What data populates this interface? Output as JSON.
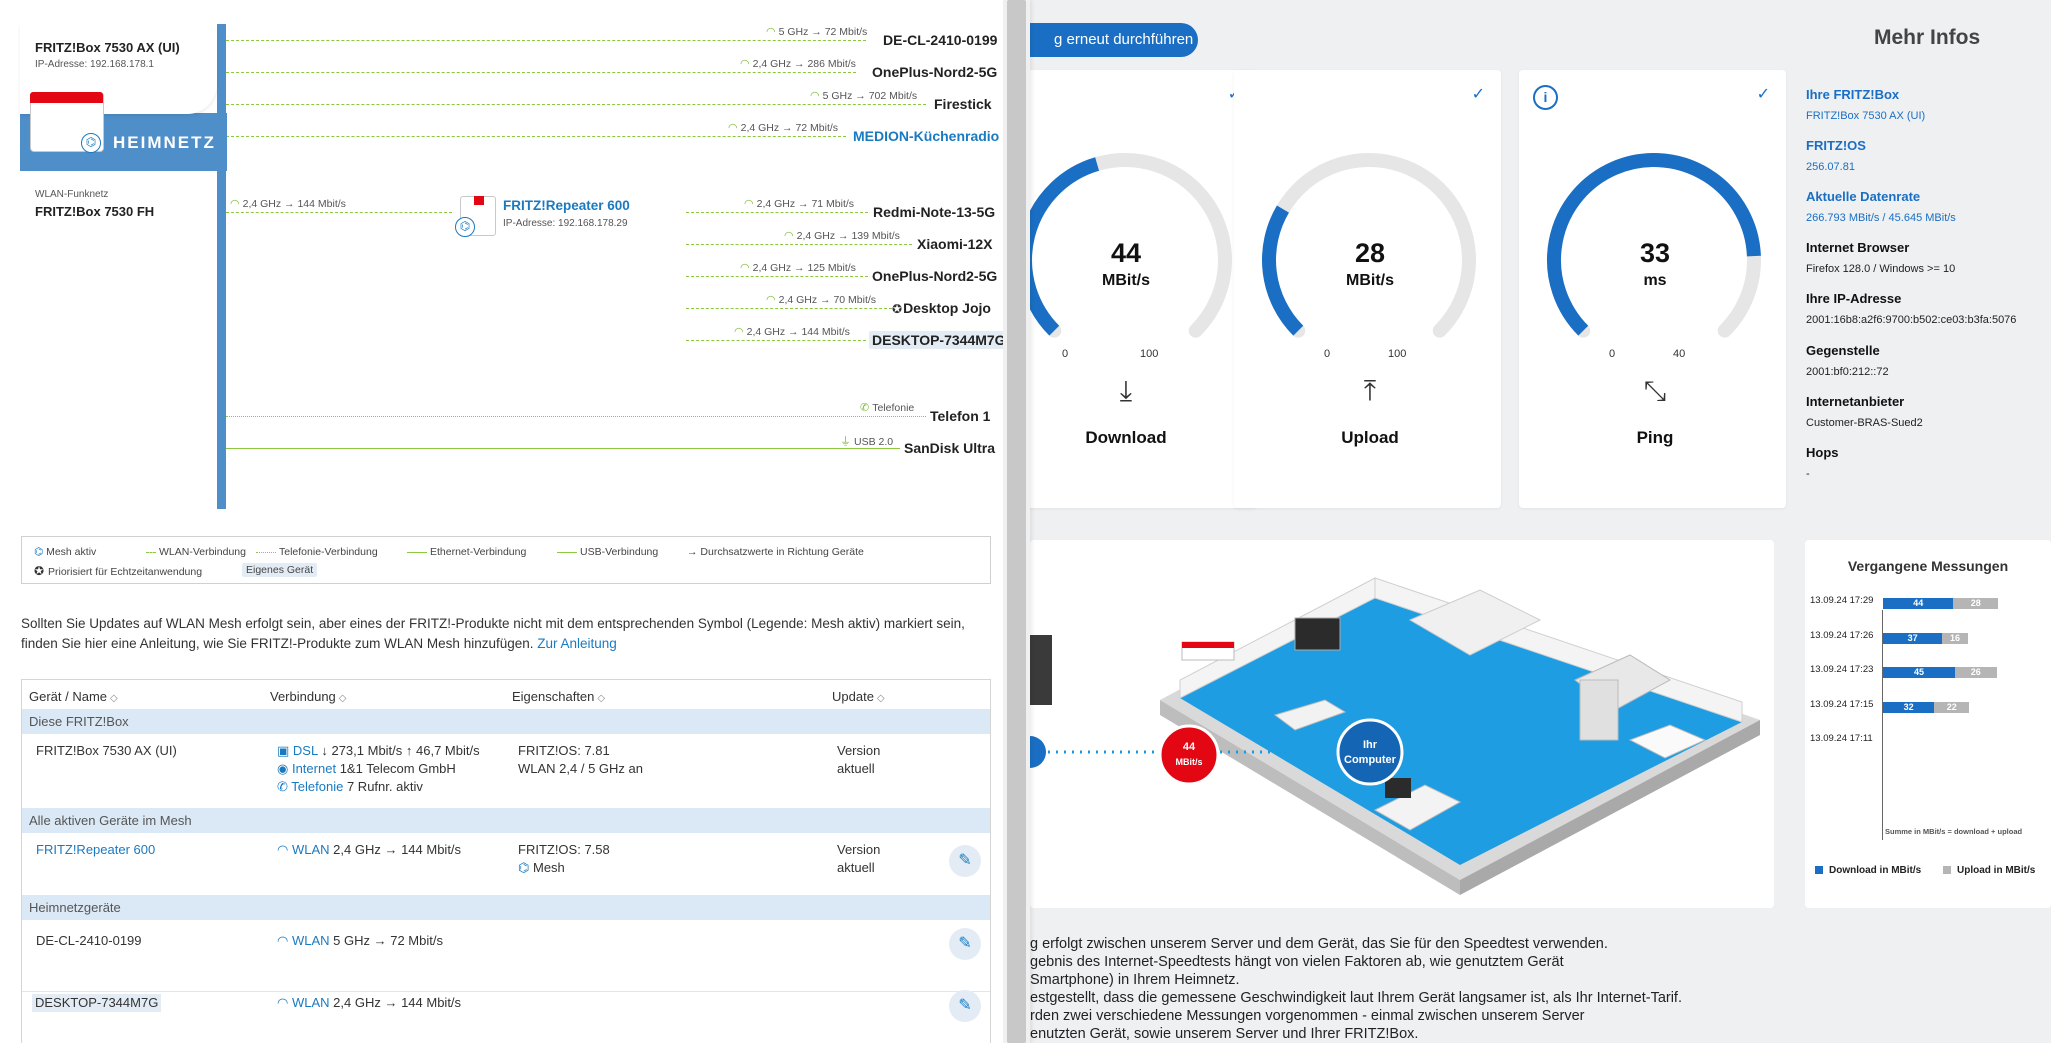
{
  "mesh": {
    "router": {
      "name": "FRITZ!Box 7530 AX (UI)",
      "ip": "IP-Adresse: 192.168.178.1"
    },
    "heimnetz_label": "HEIMNETZ",
    "wlan_funknetz": {
      "label": "WLAN-Funknetz",
      "name": "FRITZ!Box 7530 FH"
    },
    "repeater": {
      "name": "FRITZ!Repeater 600",
      "ip": "IP-Adresse: 192.168.178.29",
      "speed": "2,4 GHz → 144 Mbit/s"
    },
    "router_devices": [
      {
        "name": "DE-CL-2410-0199",
        "speed": "5 GHz → 72 Mbit/s"
      },
      {
        "name": "OnePlus-Nord2-5G",
        "speed": "2,4 GHz → 286 Mbit/s"
      },
      {
        "name": "Firestick",
        "speed": "5 GHz → 702 Mbit/s"
      },
      {
        "name": "MEDION-Küchenradio",
        "speed": "2,4 GHz → 72 Mbit/s"
      }
    ],
    "repeater_devices": [
      {
        "name": "Redmi-Note-13-5G",
        "speed": "2,4 GHz → 71 Mbit/s"
      },
      {
        "name": "Xiaomi-12X",
        "speed": "2,4 GHz → 139 Mbit/s"
      },
      {
        "name": "OnePlus-Nord2-5G",
        "speed": "2,4 GHz → 125 Mbit/s"
      },
      {
        "name": "Desktop Jojo",
        "speed": "2,4 GHz → 70 Mbit/s"
      },
      {
        "name": "DESKTOP-7344M7G",
        "speed": "2,4 GHz → 144 Mbit/s"
      }
    ],
    "telefon": {
      "name": "Telefon 1",
      "label": "Telefonie"
    },
    "usb": {
      "name": "SanDisk Ultra",
      "label": "USB 2.0"
    }
  },
  "legend": {
    "mesh_aktiv": "Mesh aktiv",
    "wlan": "WLAN-Verbindung",
    "telefonie": "Telefonie-Verbindung",
    "ethernet": "Ethernet-Verbindung",
    "usb": "USB-Verbindung",
    "durchsatz": "→ Durchsatzwerte in Richtung Geräte",
    "priorisiert": "Priorisiert für Echtzeitanwendung",
    "eigenes": "Eigenes Gerät"
  },
  "hint": {
    "text": "Sollten Sie Updates auf WLAN Mesh erfolgt sein, aber eines der FRITZ!-Produkte nicht mit dem entsprechenden Symbol (Legende: Mesh aktiv) markiert sein,",
    "text2": "finden Sie hier eine Anleitung, wie Sie FRITZ!-Produkte zum WLAN Mesh hinzufügen.",
    "link": "Zur Anleitung"
  },
  "table": {
    "headers": [
      "Gerät / Name",
      "Verbindung",
      "Eigenschaften",
      "Update"
    ],
    "groups": [
      "Diese FRITZ!Box",
      "Alle aktiven Geräte im Mesh",
      "Heimnetzgeräte"
    ],
    "fritzbox": {
      "name": "FRITZ!Box 7530 AX (UI)",
      "dsl_label": "DSL",
      "dsl_value": "↓ 273,1 Mbit/s ↑ 46,7 Mbit/s",
      "internet_label": "Internet",
      "internet_value": "1&1 Telecom GmbH",
      "telefonie_label": "Telefonie",
      "telefonie_value": "7 Rufnr. aktiv",
      "os": "FRITZ!OS: 7.81",
      "wlan": "WLAN 2,4 / 5 GHz an",
      "update1": "Version",
      "update2": "aktuell"
    },
    "repeater": {
      "name": "FRITZ!Repeater 600",
      "wlan_label": "WLAN",
      "wlan_value": "2,4 GHz → 144 Mbit/s",
      "os": "FRITZ!OS: 7.58",
      "mesh": "Mesh",
      "update1": "Version",
      "update2": "aktuell"
    },
    "heimnetz": [
      {
        "name": "DE-CL-2410-0199",
        "wlan_label": "WLAN",
        "wlan_value": "5 GHz → 72 Mbit/s"
      },
      {
        "name": "DESKTOP-7344M7G",
        "wlan_label": "WLAN",
        "wlan_value": "2,4 GHz → 144 Mbit/s"
      }
    ]
  },
  "speedtest": {
    "retest_label": "g erneut durchführen",
    "more_title": "Mehr Infos",
    "gauges": [
      {
        "label": "Download",
        "value": "44",
        "unit": "MBit/s",
        "min": "0",
        "max": "100",
        "fraction": 0.44,
        "icon": "download-icon"
      },
      {
        "label": "Upload",
        "value": "28",
        "unit": "MBit/s",
        "min": "0",
        "max": "100",
        "fraction": 0.28,
        "icon": "upload-icon"
      },
      {
        "label": "Ping",
        "value": "33",
        "unit": "ms",
        "min": "0",
        "max": "40",
        "fraction": 0.825,
        "icon": "ping-icon"
      }
    ],
    "info": [
      {
        "h": "Ihre FRITZ!Box",
        "v": "FRITZ!Box 7530 AX (UI)",
        "blue": true
      },
      {
        "h": "FRITZ!OS",
        "v": "256.07.81",
        "blue": true
      },
      {
        "h": "Aktuelle Datenrate",
        "v": "266.793 MBit/s / 45.645 MBit/s",
        "blue": true
      },
      {
        "h": "Internet Browser",
        "v": "Firefox 128.0 / Windows >= 10",
        "blue": false
      },
      {
        "h": "Ihre IP-Adresse",
        "v": "2001:16b8:a2f6:9700:b502:ce03:b3fa:5076",
        "blue": false
      },
      {
        "h": "Gegenstelle",
        "v": "2001:bf0:212::72",
        "blue": false
      },
      {
        "h": "Internetanbieter",
        "v": "Customer-BRAS-Sued2",
        "blue": false
      },
      {
        "h": "Hops",
        "v": "-",
        "blue": false
      }
    ],
    "illustration": {
      "speed_value": "44",
      "speed_unit": "MBit/s",
      "computer_label1": "Ihr",
      "computer_label2": "Computer"
    },
    "history": {
      "title": "Vergangene Messungen",
      "entries": [
        {
          "date": "13.09.24 17:29",
          "download": 44,
          "upload": 28
        },
        {
          "date": "13.09.24 17:26",
          "download": 37,
          "upload": 16
        },
        {
          "date": "13.09.24 17:23",
          "download": 45,
          "upload": 26
        },
        {
          "date": "13.09.24 17:15",
          "download": 32,
          "upload": 22
        },
        {
          "date": "13.09.24 17:11",
          "download": null,
          "upload": null
        }
      ],
      "axis_note": "Summe in MBit/s  = download + upload",
      "legend_download": "Download in MBit/s",
      "legend_upload": "Upload in MBit/s",
      "colors": {
        "download": "#1a6fc4",
        "upload": "#b5b5b5"
      }
    },
    "description": [
      "g erfolgt zwischen unserem Server und dem Gerät, das Sie für den Speedtest verwenden.",
      "gebnis des Internet-Speedtests hängt von vielen Faktoren ab, wie genutztem Gerät",
      "Smartphone) in Ihrem Heimnetz.",
      "estgestellt, dass die gemessene Geschwindigkeit laut Ihrem Gerät langsamer ist, als Ihr Internet-Tarif.",
      "rden zwei verschiedene Messungen vorgenommen - einmal zwischen unserem Server",
      "enutzten Gerät, sowie unserem Server und Ihrer FRITZ!Box."
    ]
  }
}
